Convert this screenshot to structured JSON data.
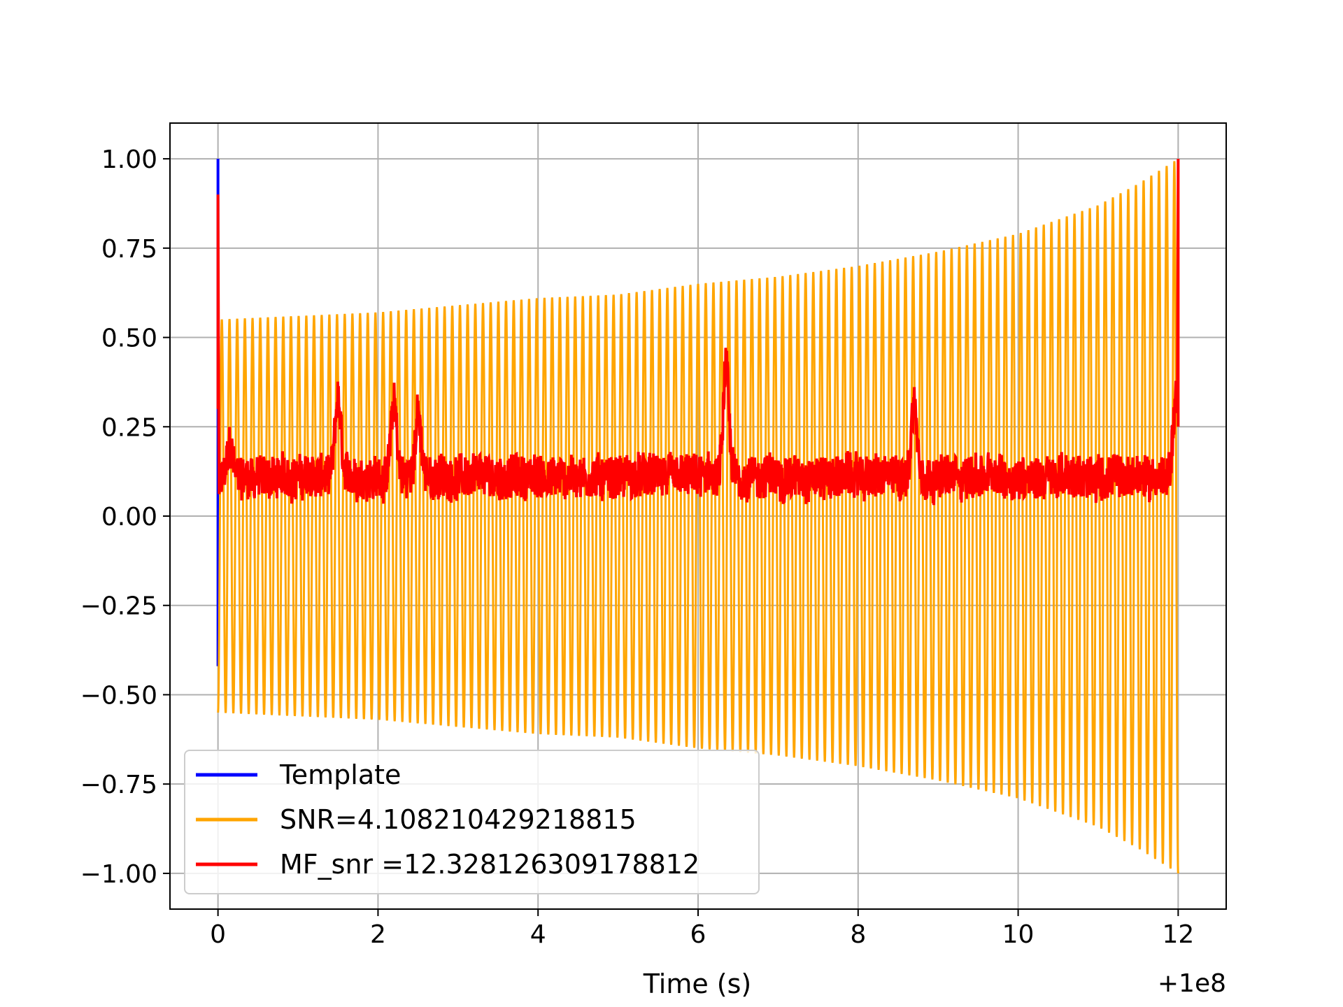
{
  "chart_data": {
    "type": "line",
    "title": "",
    "xlabel": "Time (s)",
    "ylabel": "",
    "x_offset_label": "+1e8",
    "xlim": [
      -0.6,
      12.6
    ],
    "ylim": [
      -1.1,
      1.1
    ],
    "grid": true,
    "x_ticks": [
      0,
      2,
      4,
      6,
      8,
      10,
      12
    ],
    "x_tick_labels": [
      "0",
      "2",
      "4",
      "6",
      "8",
      "10",
      "12"
    ],
    "y_ticks": [
      1.0,
      0.75,
      0.5,
      0.25,
      0.0,
      -0.25,
      -0.5,
      -0.75,
      -1.0
    ],
    "y_tick_labels": [
      "1.00",
      "0.75",
      "0.50",
      "0.25",
      "0.00",
      "−0.25",
      "−0.50",
      "−0.75",
      "−1.00"
    ],
    "legend_position": "bottom-left",
    "series": [
      {
        "name": "Template",
        "color": "#0000ff",
        "description": "single vertical spike at t=0 from -0.42 to 1.0",
        "x": [
          0,
          0,
          0
        ],
        "y": [
          -0.42,
          1.0,
          0.0
        ]
      },
      {
        "name": "SNR=4.108210429218815",
        "color": "#ffa500",
        "description": "chirp oscillation, about 125 cycles from t=0 to t=12, amplitude envelope sampled below",
        "cycles": 125,
        "envelope_t": [
          0,
          1,
          2,
          3,
          4,
          5,
          6,
          7,
          8,
          9,
          10,
          11,
          11.5,
          12
        ],
        "envelope_amp": [
          0.55,
          0.56,
          0.57,
          0.59,
          0.61,
          0.62,
          0.65,
          0.67,
          0.7,
          0.74,
          0.79,
          0.87,
          0.93,
          1.0
        ]
      },
      {
        "name": "MF_snr =12.328126309178812",
        "color": "#ff0000",
        "description": "noisy matched-filter SNR, baseline about 0-0.2, peaks sampled below",
        "peaks_t": [
          0,
          0.15,
          1.5,
          2.2,
          2.5,
          6.35,
          8.7,
          11.97,
          12.0
        ],
        "peaks_y": [
          0.9,
          0.2,
          0.34,
          0.33,
          0.3,
          0.42,
          0.33,
          0.34,
          1.0
        ]
      }
    ]
  }
}
